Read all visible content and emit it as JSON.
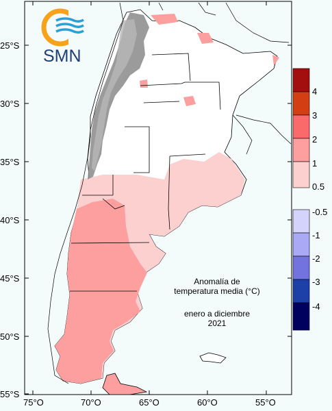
{
  "logo": {
    "text": "SMN"
  },
  "title": {
    "line1": "Anomalía de",
    "line2": "temperatura media (°C)",
    "period_line1": "enero a diciembre",
    "period_line2": "2021"
  },
  "lat_ticks": [
    "25°S",
    "30°S",
    "35°S",
    "40°S",
    "45°S",
    "50°S",
    "55°S"
  ],
  "lon_ticks": [
    "75°O",
    "70°O",
    "65°O",
    "60°O",
    "55°O"
  ],
  "legend": {
    "positive": [
      {
        "label": "4",
        "color": "#a30f0f"
      },
      {
        "label": "3",
        "color": "#d33f12"
      },
      {
        "label": "2",
        "color": "#fb6a6a"
      },
      {
        "label": "1",
        "color": "#fd9f9f"
      },
      {
        "label": "0.5",
        "color": "#fdd0d0"
      }
    ],
    "negative": [
      {
        "label": "-0.5",
        "color": "#d3d3fb"
      },
      {
        "label": "-1",
        "color": "#a9a9f5"
      },
      {
        "label": "-2",
        "color": "#7373e0"
      },
      {
        "label": "-3",
        "color": "#1c3fa8"
      },
      {
        "label": "-4",
        "color": "#00005e"
      }
    ]
  },
  "colors": {
    "background": "#f3fbfb",
    "anomaly_0_5": "#fdd0d0",
    "anomaly_1": "#fd9f9f",
    "terrain": "#8a8a8a",
    "logo_orange": "#f7a21b",
    "logo_blue": "#2a9fd8"
  }
}
